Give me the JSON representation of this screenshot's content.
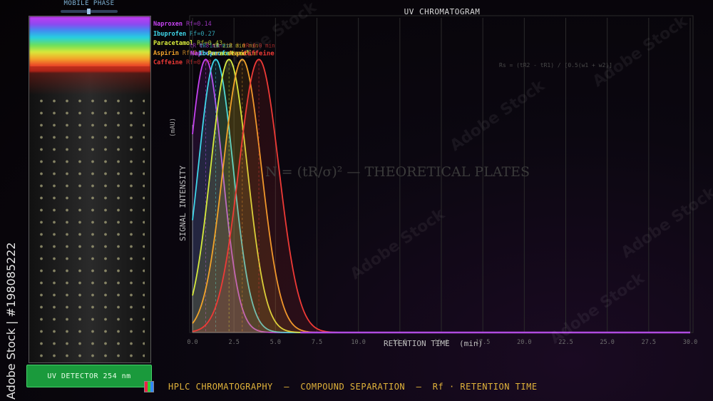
{
  "colors": {
    "naproxen": "#c542f0",
    "ibuprofen": "#3fd7ea",
    "paracetamol": "#d8ec3c",
    "aspirin": "#f2a42a",
    "caffeine": "#ee3a36",
    "detector": "#1a9a3c",
    "footer": "#e0b23a"
  },
  "column": {
    "mobile_phase_label": "MOBILE PHASE"
  },
  "legend": [
    {
      "name": "Naproxen",
      "rf": "Rf=0.14",
      "color": "#c542f0"
    },
    {
      "name": "Ibuprofen",
      "rf": "Rf=0.27",
      "color": "#3fd7ea"
    },
    {
      "name": "Paracetamol",
      "rf": "Rf=0.43",
      "color": "#d8ec3c"
    },
    {
      "name": "Aspirin",
      "rf": "Rf=0.6",
      "color": "#f2a42a"
    },
    {
      "name": "Caffeine",
      "rf": "Rf=0.78",
      "color": "#ee3a36"
    }
  ],
  "detector": {
    "label": "UV DETECTOR  254 nm"
  },
  "footer": {
    "text": "HPLC CHROMATOGRAPHY  —  COMPOUND SEPARATION  —  Rf · RETENTION TIME"
  },
  "watermark": {
    "side_text": "Adobe Stock | #198085222",
    "tile_text": "Adobe Stock"
  },
  "formulas": {
    "rs": "Rs = (tR2 - tR1) / [0.5(w1 + w2)]",
    "n": "N = (tR/σ)² — THEORETICAL PLATES"
  },
  "chart_data": {
    "type": "line",
    "title": "UV CHROMATOGRAM",
    "xlabel": "RETENTION TIME  (min)",
    "ylabel": "SIGNAL INTENSITY",
    "yunit": "(mAU)",
    "xlim": [
      0,
      30
    ],
    "ylim": [
      0,
      1.1
    ],
    "x_ticks": [
      "0.0",
      "2.5",
      "5.0",
      "7.5",
      "10.0",
      "12.5",
      "15.0",
      "17.5",
      "20.0",
      "22.5",
      "25.0",
      "27.5",
      "30.0"
    ],
    "grid": true,
    "series": [
      {
        "name": "Naproxen",
        "retention_time": 0.8,
        "sigma": 1.0,
        "height": 1.0,
        "tr_label": "tR 0.8 min",
        "color": "#c542f0"
      },
      {
        "name": "Ibuprofen",
        "retention_time": 1.4,
        "sigma": 1.05,
        "height": 1.0,
        "tr_label": "tR 1.4 min",
        "color": "#3fd7ea"
      },
      {
        "name": "Paracetamol",
        "retention_time": 2.2,
        "sigma": 1.1,
        "height": 1.0,
        "tr_label": "tR 2.2 min",
        "color": "#d8ec3c"
      },
      {
        "name": "Aspirin",
        "retention_time": 3.0,
        "sigma": 1.15,
        "height": 1.0,
        "tr_label": "tR 3.0 min",
        "color": "#f2a42a"
      },
      {
        "name": "Caffeine",
        "retention_time": 4.0,
        "sigma": 1.2,
        "height": 1.0,
        "tr_label": "tR 4.0 min",
        "color": "#ee3a36"
      }
    ]
  }
}
